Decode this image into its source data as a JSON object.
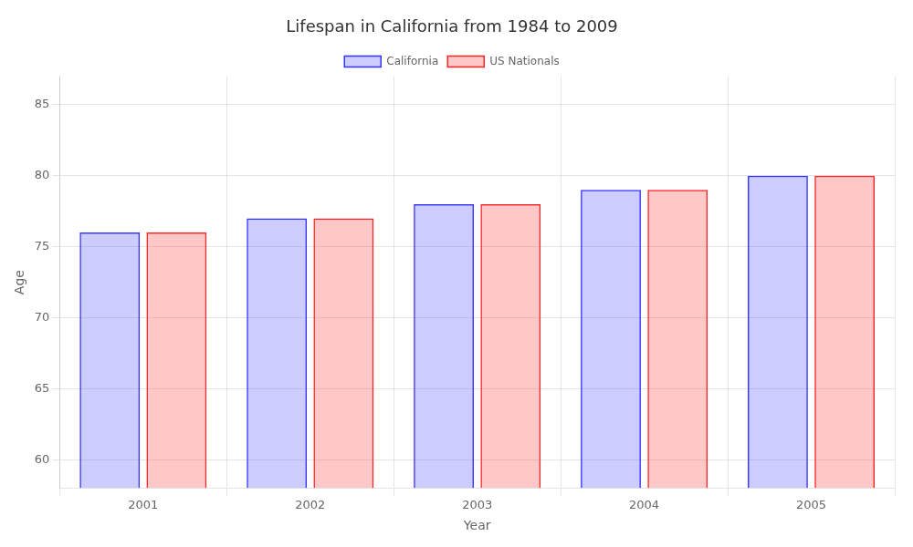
{
  "chart_data": {
    "type": "bar",
    "title": "Lifespan in California from 1984 to 2009",
    "x_label": "Year",
    "y_label": "Age",
    "categories": [
      "2001",
      "2002",
      "2003",
      "2004",
      "2005"
    ],
    "series": [
      {
        "name": "California",
        "color": "#3333ff",
        "values": [
          76,
          77,
          78,
          79,
          80
        ]
      },
      {
        "name": "US Nationals",
        "color": "#ff2222",
        "values": [
          76,
          77,
          78,
          79,
          80
        ]
      }
    ],
    "ylim": [
      58,
      87
    ],
    "yticks": [
      60,
      65,
      70,
      75,
      80,
      85
    ],
    "grid": true,
    "legend": "top"
  }
}
